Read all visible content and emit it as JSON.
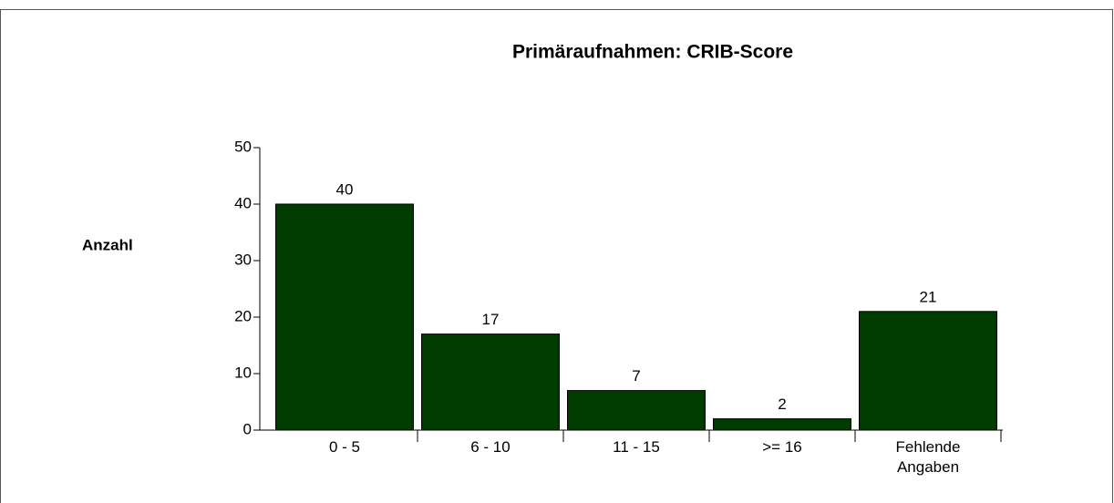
{
  "chart_data": {
    "type": "bar",
    "title": "Primäraufnahmen: CRIB-Score",
    "y_label": "Anzahl",
    "categories": [
      "0 - 5",
      "6 - 10",
      "11 - 15",
      ">= 16",
      "Fehlende Angaben"
    ],
    "values": [
      40,
      17,
      7,
      2,
      21
    ],
    "color": "#003c00",
    "ylim": [
      0,
      50
    ],
    "yticks": [
      0,
      10,
      20,
      30,
      40,
      50
    ]
  }
}
